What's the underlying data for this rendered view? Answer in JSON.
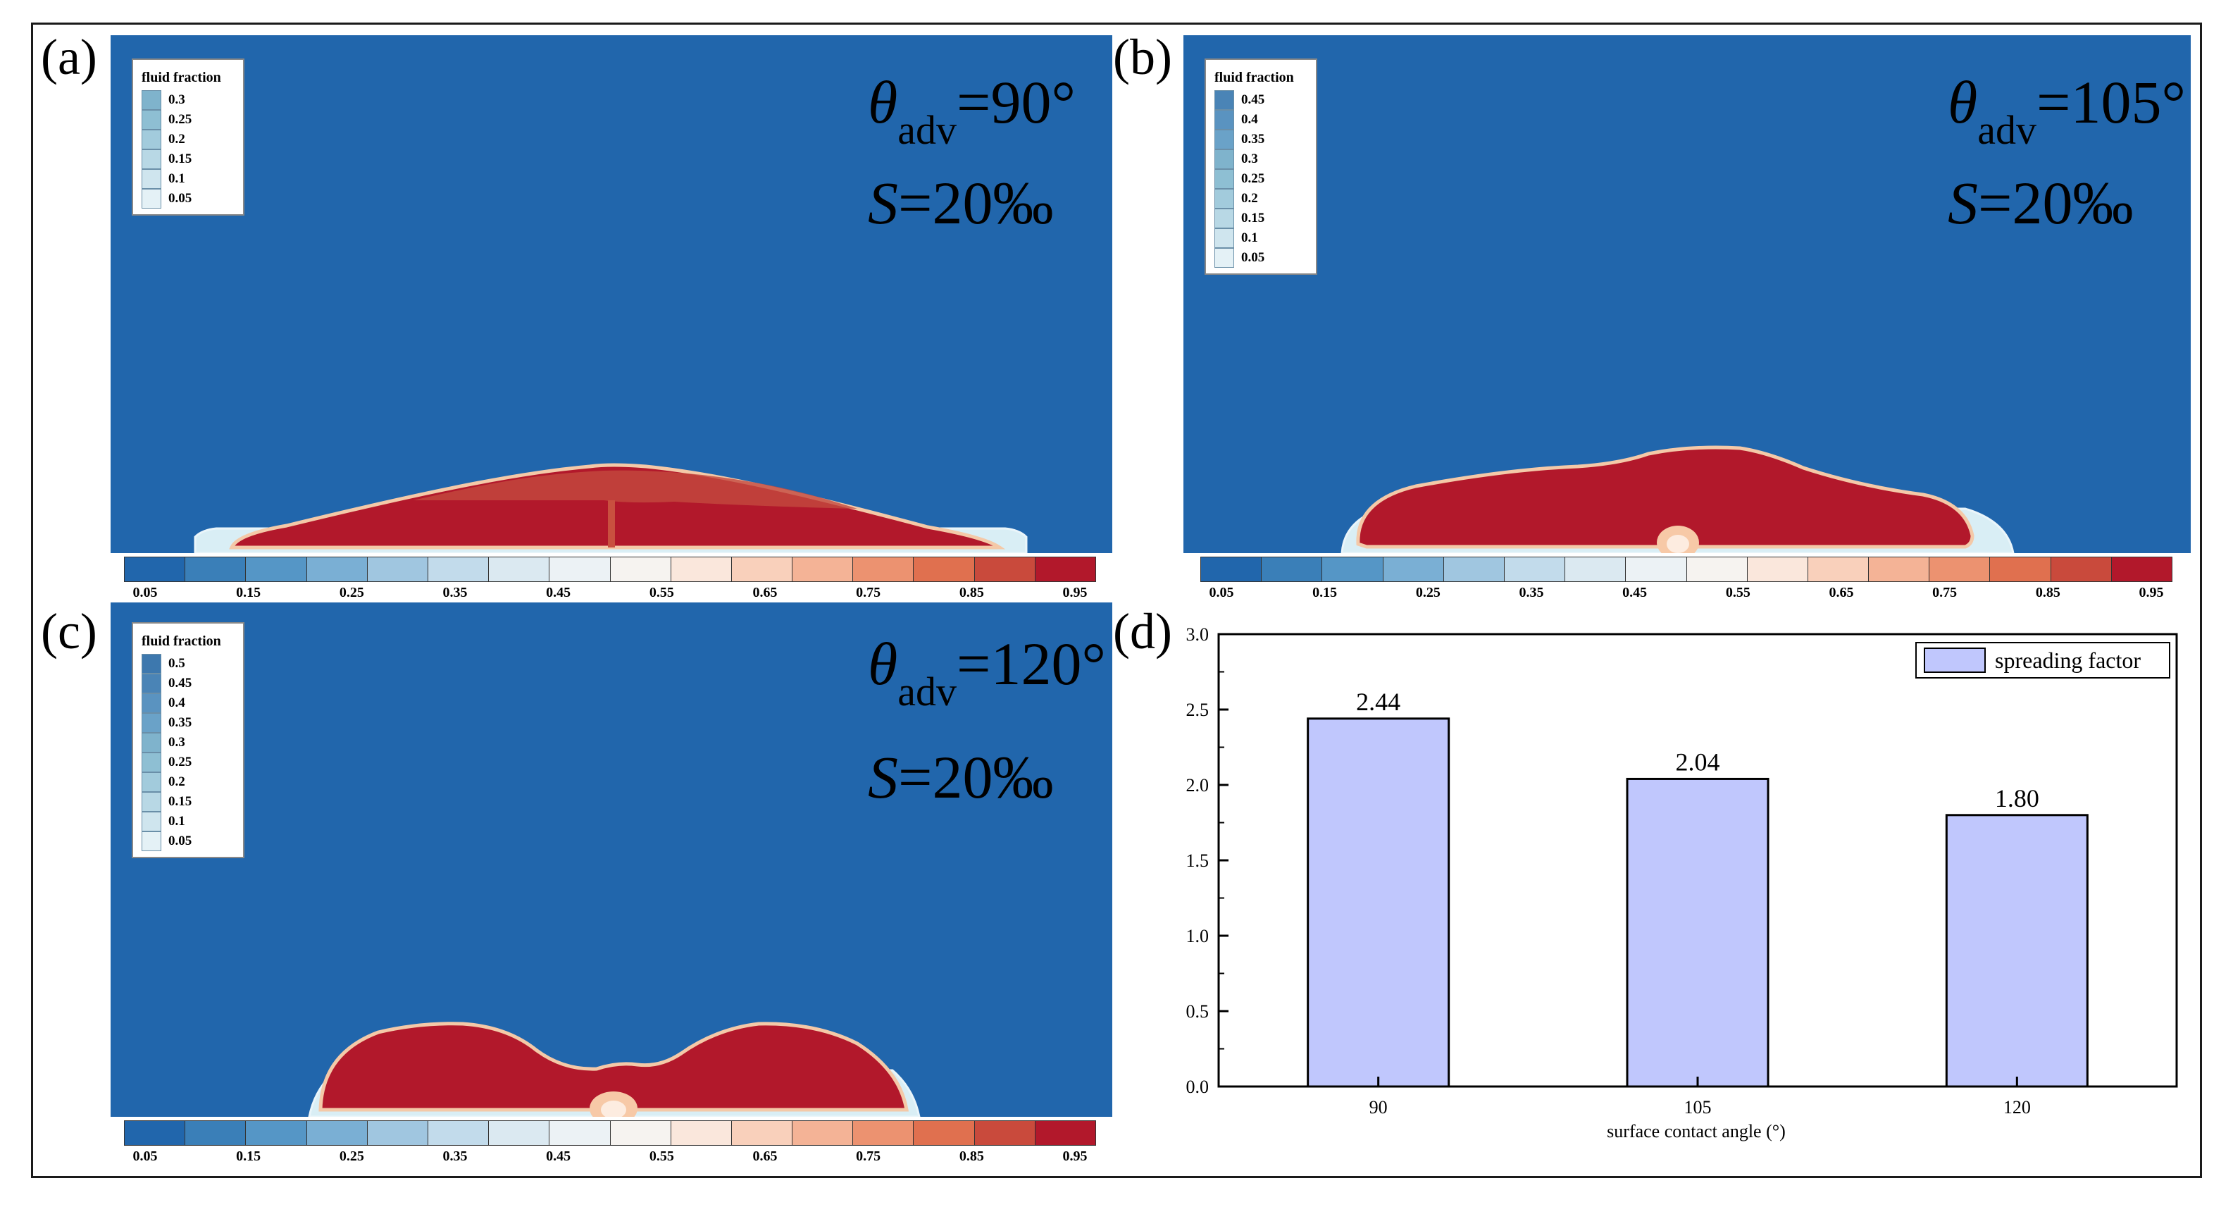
{
  "panels": [
    {
      "label": "(a)",
      "legend": {
        "title": "fluid fraction",
        "levels": [
          "0.3",
          "0.25",
          "0.2",
          "0.15",
          "0.1",
          "0.05"
        ]
      },
      "theta": "θ",
      "subscript": "adv",
      "angle": "=90°",
      "s_symbol": "S",
      "s_value": "=20‰"
    },
    {
      "label": "(b)",
      "legend": {
        "title": "fluid fraction",
        "levels": [
          "0.45",
          "0.4",
          "0.35",
          "0.3",
          "0.25",
          "0.2",
          "0.15",
          "0.1",
          "0.05"
        ]
      },
      "theta": "θ",
      "subscript": "adv",
      "angle": "=105°",
      "s_symbol": "S",
      "s_value": "=20‰"
    },
    {
      "label": "(c)",
      "legend": {
        "title": "fluid fraction",
        "levels": [
          "0.5",
          "0.45",
          "0.4",
          "0.35",
          "0.3",
          "0.25",
          "0.2",
          "0.15",
          "0.1",
          "0.05"
        ]
      },
      "theta": "θ",
      "subscript": "adv",
      "angle": "=120°",
      "s_symbol": "S",
      "s_value": "=20‰"
    }
  ],
  "colorbar": {
    "ticks": [
      "0.05",
      "0.15",
      "0.25",
      "0.35",
      "0.45",
      "0.55",
      "0.65",
      "0.75",
      "0.85",
      "0.95"
    ],
    "colors": [
      "#2166ac",
      "#3a7fb8",
      "#5596c6",
      "#7aafd4",
      "#a0c6e0",
      "#c2dbeb",
      "#dbe9f1",
      "#ecf2f5",
      "#f6f3f0",
      "#fae7dc",
      "#f9d0bb",
      "#f4b396",
      "#ec9270",
      "#e0704f",
      "#c94a3c",
      "#b2182b"
    ]
  },
  "colors": {
    "background": "#2166ac",
    "drop": "#b2182b",
    "drop_edge": "#c9503f",
    "film": "#d9eef5",
    "bar": "#c0c7fd"
  },
  "chart_label": "(d)",
  "chart_data": {
    "type": "bar",
    "categories": [
      "90",
      "105",
      "120"
    ],
    "series": [
      {
        "name": "spreading factor",
        "values": [
          2.44,
          2.04,
          1.8
        ]
      }
    ],
    "data_labels": [
      "2.44",
      "2.04",
      "1.80"
    ],
    "xlabel": "surface contact angle (°)",
    "ylabel": "",
    "ylim": [
      0,
      3.0
    ],
    "yticks": [
      "0.0",
      "0.5",
      "1.0",
      "1.5",
      "2.0",
      "2.5",
      "3.0"
    ],
    "legend_position": "top-right",
    "grid": false
  }
}
